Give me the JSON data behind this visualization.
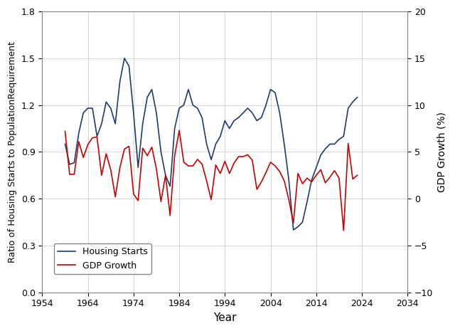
{
  "xlabel": "Year",
  "ylabel_left": "Ratio of Housing Starts to PopulationRequirement",
  "ylabel_right": "GDP Growth (%)",
  "xlim": [
    1954,
    2034
  ],
  "ylim_left": [
    0.0,
    1.8
  ],
  "ylim_right": [
    -10,
    20
  ],
  "xticks": [
    1954,
    1964,
    1974,
    1984,
    1994,
    2004,
    2014,
    2024,
    2034
  ],
  "yticks_left": [
    0.0,
    0.3,
    0.6,
    0.9,
    1.2,
    1.5,
    1.8
  ],
  "yticks_right": [
    -10,
    -5,
    0,
    5,
    10,
    15,
    20
  ],
  "housing_color": "#1f3a6e",
  "gdp_color": "#cc0000",
  "background_color": "#ffffff",
  "grid_color": "#cccccc",
  "legend_loc": "lower left",
  "housing_starts": {
    "years": [
      1959,
      1960,
      1961,
      1962,
      1963,
      1964,
      1965,
      1966,
      1967,
      1968,
      1969,
      1970,
      1971,
      1972,
      1973,
      1974,
      1975,
      1976,
      1977,
      1978,
      1979,
      1980,
      1981,
      1982,
      1983,
      1984,
      1985,
      1986,
      1987,
      1988,
      1989,
      1990,
      1991,
      1992,
      1993,
      1994,
      1995,
      1996,
      1997,
      1998,
      1999,
      2000,
      2001,
      2002,
      2003,
      2004,
      2005,
      2006,
      2007,
      2008,
      2009,
      2010,
      2011,
      2012,
      2013,
      2014,
      2015,
      2016,
      2017,
      2018,
      2019,
      2020,
      2021,
      2022,
      2023
    ],
    "values": [
      0.95,
      0.82,
      0.83,
      1.02,
      1.15,
      1.18,
      1.18,
      1.0,
      1.08,
      1.22,
      1.18,
      1.08,
      1.35,
      1.5,
      1.45,
      1.15,
      0.8,
      1.08,
      1.25,
      1.3,
      1.15,
      0.9,
      0.75,
      0.68,
      1.05,
      1.18,
      1.2,
      1.3,
      1.2,
      1.18,
      1.12,
      0.95,
      0.85,
      0.95,
      1.0,
      1.1,
      1.05,
      1.1,
      1.12,
      1.15,
      1.18,
      1.15,
      1.1,
      1.12,
      1.2,
      1.3,
      1.28,
      1.15,
      0.95,
      0.72,
      0.4,
      0.42,
      0.45,
      0.58,
      0.72,
      0.8,
      0.88,
      0.92,
      0.95,
      0.95,
      0.98,
      1.0,
      1.18,
      1.22,
      1.25
    ]
  },
  "gdp_growth": {
    "years": [
      1959,
      1960,
      1961,
      1962,
      1963,
      1964,
      1965,
      1966,
      1967,
      1968,
      1969,
      1970,
      1971,
      1972,
      1973,
      1974,
      1975,
      1976,
      1977,
      1978,
      1979,
      1980,
      1981,
      1982,
      1983,
      1984,
      1985,
      1986,
      1987,
      1988,
      1989,
      1990,
      1991,
      1992,
      1993,
      1994,
      1995,
      1996,
      1997,
      1998,
      1999,
      2000,
      2001,
      2002,
      2003,
      2004,
      2005,
      2006,
      2007,
      2008,
      2009,
      2010,
      2011,
      2012,
      2013,
      2014,
      2015,
      2016,
      2017,
      2018,
      2019,
      2020,
      2021,
      2022,
      2023
    ],
    "values": [
      7.2,
      2.6,
      2.6,
      6.1,
      4.4,
      5.8,
      6.5,
      6.6,
      2.5,
      4.8,
      3.1,
      0.2,
      3.3,
      5.3,
      5.6,
      0.5,
      -0.2,
      5.4,
      4.6,
      5.5,
      3.2,
      -0.3,
      2.5,
      -1.8,
      4.6,
      7.3,
      3.9,
      3.5,
      3.5,
      4.2,
      3.7,
      1.9,
      -0.1,
      3.6,
      2.7,
      4.0,
      2.7,
      3.8,
      4.5,
      4.5,
      4.7,
      4.1,
      1.0,
      1.8,
      2.8,
      3.9,
      3.5,
      2.9,
      1.9,
      -0.1,
      -2.6,
      2.7,
      1.6,
      2.2,
      1.8,
      2.5,
      3.1,
      1.7,
      2.3,
      3.0,
      2.2,
      -3.4,
      5.9,
      2.1,
      2.5
    ]
  }
}
